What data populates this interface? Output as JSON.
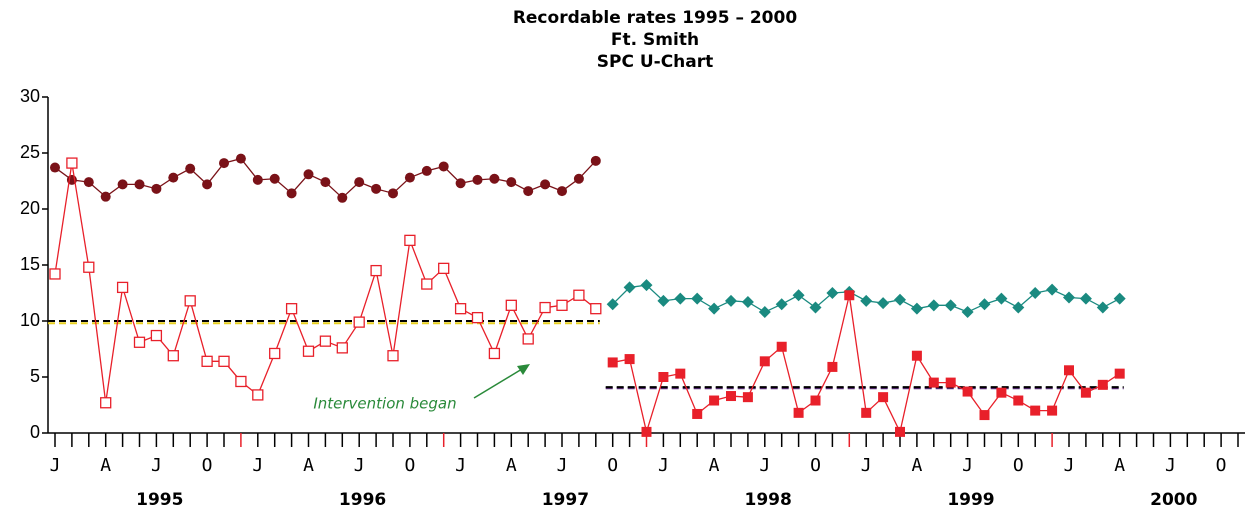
{
  "chart_data": {
    "type": "line",
    "title": [
      "Recordable rates 1995 – 2000",
      "Ft. Smith",
      "SPC U-Chart"
    ],
    "categories": [
      "J",
      null,
      null,
      "A",
      null,
      null,
      "J",
      null,
      null,
      "O",
      null,
      null,
      "J",
      null,
      null,
      "A",
      null,
      null,
      "J",
      null,
      null,
      "O",
      null,
      null,
      "J",
      null,
      null,
      "A",
      null,
      null,
      "J",
      null,
      null,
      "O",
      null,
      null,
      "J",
      null,
      null,
      "A",
      null,
      null,
      "J",
      null,
      null,
      "O",
      null,
      null,
      "J",
      null,
      null,
      "A",
      null,
      null,
      "J",
      null,
      null,
      "O",
      null,
      null,
      "J",
      null,
      null,
      "A",
      null,
      null,
      "J",
      null,
      null,
      "O",
      null,
      null
    ],
    "years": [
      "1995",
      "1996",
      "1997",
      "1998",
      "1999",
      "2000"
    ],
    "ylim": [
      0,
      30
    ],
    "yticks": [
      0,
      5,
      10,
      15,
      20,
      25,
      30
    ],
    "grid": false,
    "series": [
      {
        "color": "#7a1218",
        "marker": "circle",
        "values": [
          23.7,
          22.6,
          22.4,
          21.1,
          22.2,
          22.2,
          21.8,
          22.8,
          23.6,
          22.2,
          24.1,
          24.5,
          22.6,
          22.7,
          21.4,
          23.1,
          22.4,
          21.0,
          22.4,
          21.8,
          21.4,
          22.8,
          23.4,
          23.8,
          22.3,
          22.6,
          22.7,
          22.4,
          21.6,
          22.2,
          21.6,
          22.7,
          24.3,
          null,
          null,
          null,
          null,
          null,
          null,
          null,
          null,
          null,
          null,
          null,
          null,
          null,
          null,
          null,
          null,
          null,
          null,
          null,
          null,
          null,
          null,
          null,
          null,
          null,
          null,
          null,
          null,
          null,
          null,
          null,
          null,
          null,
          null,
          null,
          null,
          null,
          null,
          null
        ]
      },
      {
        "color": "#e8202a",
        "marker": "open-square",
        "values": [
          14.2,
          24.1,
          14.8,
          2.7,
          13.0,
          8.1,
          8.7,
          6.9,
          11.8,
          6.4,
          6.4,
          4.6,
          3.4,
          7.1,
          11.1,
          7.3,
          8.2,
          7.6,
          9.9,
          14.5,
          6.9,
          17.2,
          13.3,
          14.7,
          11.1,
          10.3,
          7.1,
          11.4,
          8.4,
          11.2,
          11.4,
          12.3,
          11.1,
          null,
          null,
          null,
          null,
          null,
          null,
          null,
          null,
          null,
          null,
          null,
          null,
          null,
          null,
          null,
          null,
          null,
          null,
          null,
          null,
          null,
          null,
          null,
          null,
          null,
          null,
          null,
          null,
          null,
          null,
          null,
          null,
          null,
          null,
          null,
          null,
          null,
          null,
          null
        ]
      },
      {
        "color": "#1a8a80",
        "marker": "diamond",
        "values": [
          null,
          null,
          null,
          null,
          null,
          null,
          null,
          null,
          null,
          null,
          null,
          null,
          null,
          null,
          null,
          null,
          null,
          null,
          null,
          null,
          null,
          null,
          null,
          null,
          null,
          null,
          null,
          null,
          null,
          null,
          null,
          null,
          null,
          11.5,
          13.0,
          13.2,
          11.8,
          12.0,
          12.0,
          11.1,
          11.8,
          11.7,
          10.8,
          11.5,
          12.3,
          11.2,
          12.5,
          12.6,
          11.8,
          11.6,
          11.9,
          11.1,
          11.4,
          11.4,
          10.8,
          11.5,
          12.0,
          11.2,
          12.5,
          12.8,
          12.1,
          12.0,
          11.2,
          12.0,
          null,
          null,
          null,
          null,
          null,
          null,
          null,
          null
        ]
      },
      {
        "color": "#e8202a",
        "marker": "square",
        "values": [
          null,
          null,
          null,
          null,
          null,
          null,
          null,
          null,
          null,
          null,
          null,
          null,
          null,
          null,
          null,
          null,
          null,
          null,
          null,
          null,
          null,
          null,
          null,
          null,
          null,
          null,
          null,
          null,
          null,
          null,
          null,
          null,
          null,
          6.3,
          6.6,
          0.1,
          5.0,
          5.3,
          1.7,
          2.9,
          3.3,
          3.2,
          6.4,
          7.7,
          1.8,
          2.9,
          5.9,
          12.3,
          1.8,
          3.2,
          0.1,
          6.9,
          4.5,
          4.5,
          3.7,
          1.6,
          3.6,
          2.9,
          2.0,
          2.0,
          5.6,
          3.6,
          4.3,
          5.3,
          null,
          null,
          null,
          null,
          null,
          null,
          null,
          null
        ]
      }
    ],
    "reference_lines": [
      {
        "value": 9.8,
        "color": "#e8d020",
        "x_range": [
          0,
          32
        ]
      },
      {
        "value": 10.0,
        "color": "#000000",
        "x_range": [
          0,
          32
        ]
      },
      {
        "value": 4.0,
        "color": "#5a2a7a",
        "x_range": [
          33,
          63
        ]
      },
      {
        "value": 4.1,
        "color": "#000000",
        "x_range": [
          33,
          63
        ]
      }
    ],
    "annotation": "Intervention began"
  }
}
